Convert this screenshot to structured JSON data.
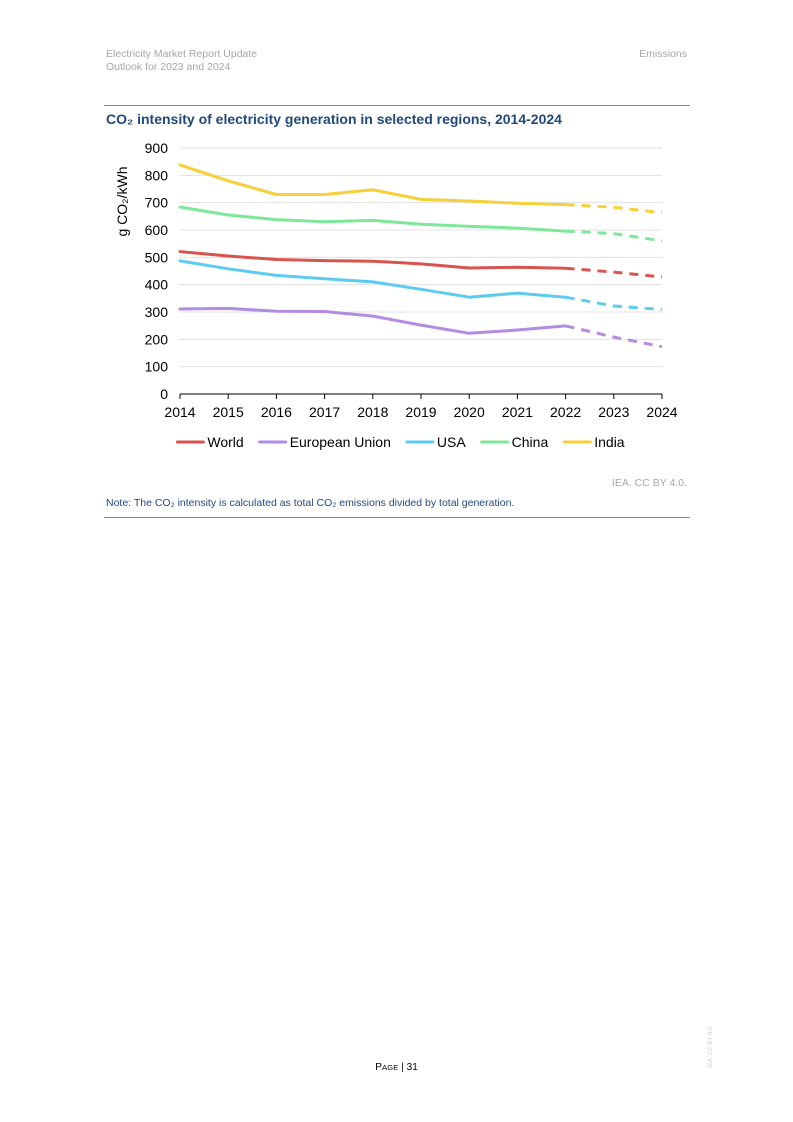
{
  "header": {
    "report_title": "Electricity Market Report Update",
    "report_subtitle": "Outlook for 2023 and 2024",
    "section": "Emissions"
  },
  "figure": {
    "title": "CO₂ intensity of electricity generation in selected regions, 2014-2024",
    "source": "IEA. CC BY 4.0.",
    "note": "Note: The CO₂ intensity is calculated as total CO₂ emissions divided by total generation."
  },
  "chart_data": {
    "type": "line",
    "title": "CO₂ intensity of electricity generation in selected regions, 2014-2024",
    "xlabel": "",
    "ylabel": "g CO₂/kWh",
    "x": [
      2014,
      2015,
      2016,
      2017,
      2018,
      2019,
      2020,
      2021,
      2022,
      2023,
      2024
    ],
    "ylim": [
      0,
      900
    ],
    "yticks": [
      0,
      100,
      200,
      300,
      400,
      500,
      600,
      700,
      800,
      900
    ],
    "grid": true,
    "legend_position": "bottom",
    "forecast_from": 2022,
    "line_style_note": "solid through 2022, dashed for 2023-2024 forecast",
    "series": [
      {
        "name": "World",
        "color": "#d9534f",
        "values": [
          521,
          505,
          492,
          488,
          486,
          476,
          461,
          464,
          460,
          446,
          428
        ]
      },
      {
        "name": "European Union",
        "color": "#b38be3",
        "values": [
          311,
          313,
          303,
          302,
          285,
          252,
          222,
          234,
          249,
          208,
          173
        ]
      },
      {
        "name": "USA",
        "color": "#5ccbef",
        "values": [
          487,
          458,
          434,
          422,
          410,
          383,
          354,
          369,
          354,
          322,
          309
        ]
      },
      {
        "name": "China",
        "color": "#7ee89a",
        "values": [
          684,
          655,
          638,
          630,
          635,
          621,
          613,
          607,
          596,
          587,
          560
        ]
      },
      {
        "name": "India",
        "color": "#f7cf38",
        "values": [
          838,
          780,
          730,
          730,
          747,
          712,
          706,
          698,
          693,
          683,
          663
        ]
      }
    ]
  },
  "footer": {
    "page_label": "Page",
    "page_number": "31",
    "side_watermark": "IEA. CC BY 4.0."
  }
}
